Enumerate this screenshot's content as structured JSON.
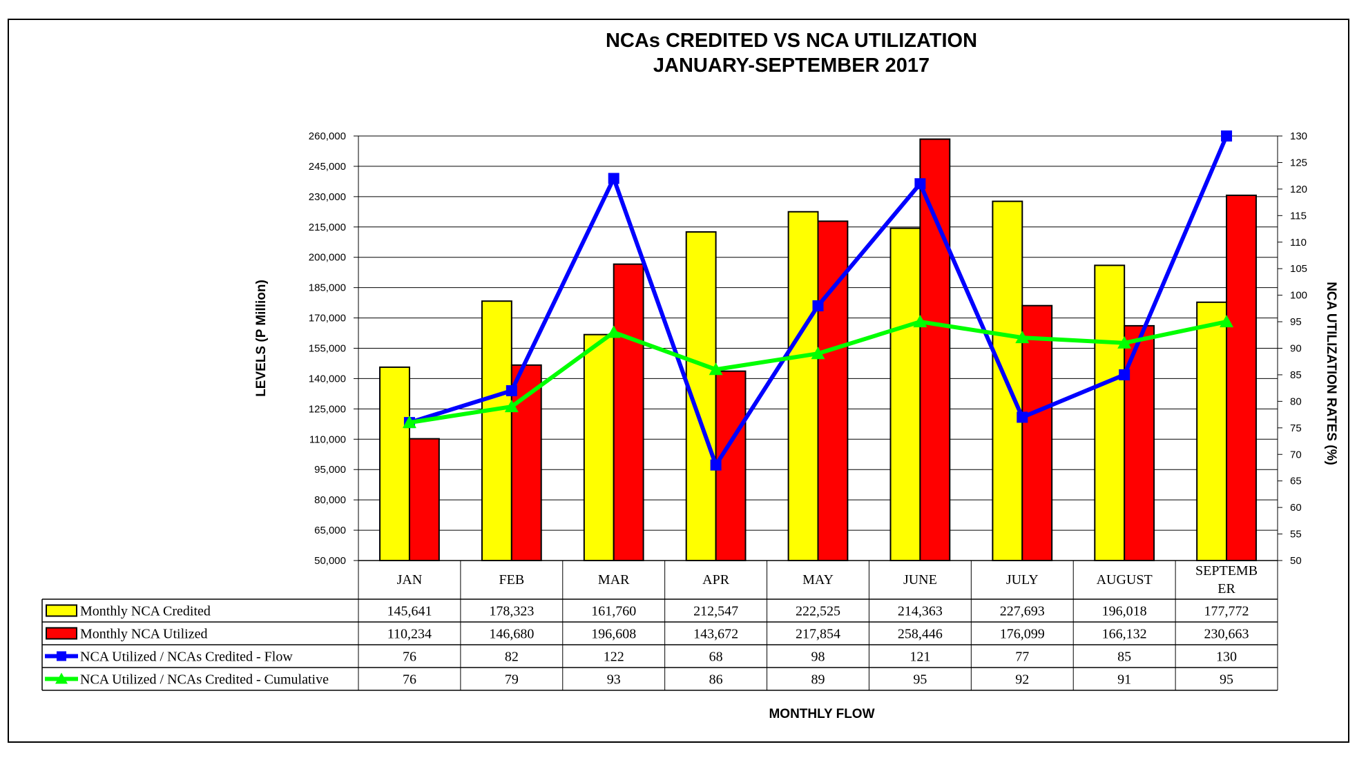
{
  "chart_data": {
    "type": "bar",
    "title": "NCAs CREDITED VS NCA UTILIZATION",
    "subtitle": "JANUARY-SEPTEMBER 2017",
    "categories": [
      "JAN",
      "FEB",
      "MAR",
      "APR",
      "MAY",
      "JUNE",
      "JULY",
      "AUGUST",
      "SEPTEMBER"
    ],
    "category_lines": [
      [
        "JAN"
      ],
      [
        "FEB"
      ],
      [
        "MAR"
      ],
      [
        "APR"
      ],
      [
        "MAY"
      ],
      [
        "JUNE"
      ],
      [
        "JULY"
      ],
      [
        "AUGUST"
      ],
      [
        "SEPTEMB",
        "ER"
      ]
    ],
    "xlabel": "MONTHLY FLOW",
    "ylabel": "LEVELS (P Million)",
    "y2label": "NCA UTILIZATION RATES (%)",
    "ylim": [
      50000,
      260000
    ],
    "y_ticks": [
      "50,000",
      "65,000",
      "80,000",
      "95,000",
      "110,000",
      "125,000",
      "140,000",
      "155,000",
      "170,000",
      "185,000",
      "200,000",
      "215,000",
      "230,000",
      "245,000",
      "260,000"
    ],
    "y2lim": [
      50,
      130
    ],
    "y2_ticks": [
      "50",
      "55",
      "60",
      "65",
      "70",
      "75",
      "80",
      "85",
      "90",
      "95",
      "100",
      "105",
      "110",
      "115",
      "120",
      "125",
      "130"
    ],
    "grid": true,
    "legend": "data-table",
    "series": [
      {
        "name": "Monthly NCA Credited",
        "type": "bar",
        "axis": "left",
        "color": "#FFFF00",
        "values": [
          145641,
          178323,
          161760,
          212547,
          222525,
          214363,
          227693,
          196018,
          177772
        ],
        "labels": [
          "145,641",
          "178,323",
          "161,760",
          "212,547",
          "222,525",
          "214,363",
          "227,693",
          "196,018",
          "177,772"
        ]
      },
      {
        "name": "Monthly NCA Utilized",
        "type": "bar",
        "axis": "left",
        "color": "#FF0000",
        "values": [
          110234,
          146680,
          196608,
          143672,
          217854,
          258446,
          176099,
          166132,
          230663
        ],
        "labels": [
          "110,234",
          "146,680",
          "196,608",
          "143,672",
          "217,854",
          "258,446",
          "176,099",
          "166,132",
          "230,663"
        ]
      },
      {
        "name": "NCA Utilized / NCAs Credited - Flow",
        "type": "line",
        "marker": "square",
        "axis": "right",
        "color": "#0000FF",
        "values": [
          76,
          82,
          122,
          68,
          98,
          121,
          77,
          85,
          130
        ],
        "labels": [
          "76",
          "82",
          "122",
          "68",
          "98",
          "121",
          "77",
          "85",
          "130"
        ]
      },
      {
        "name": "NCA Utilized / NCAs Credited - Cumulative",
        "type": "line",
        "marker": "triangle",
        "axis": "right",
        "color": "#00FF00",
        "values": [
          76,
          79,
          93,
          86,
          89,
          95,
          92,
          91,
          95
        ],
        "labels": [
          "76",
          "79",
          "93",
          "86",
          "89",
          "95",
          "92",
          "91",
          "95"
        ]
      }
    ]
  }
}
